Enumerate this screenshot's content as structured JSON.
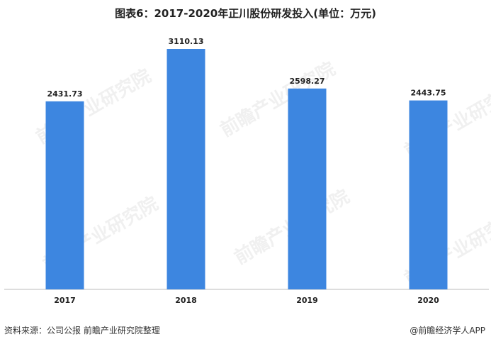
{
  "title": "图表6：2017-2020年正川股份研发投入(单位：万元)",
  "watermark_text": "前瞻产业研究院",
  "footer": {
    "source": "资料来源：公司公报 前瞻产业研究院整理",
    "credit": "@前瞻经济学人APP"
  },
  "colors": {
    "bar": "#3d86e0",
    "axis": "#bbbbbb",
    "text": "#222222"
  },
  "chart_data": {
    "type": "bar",
    "categories": [
      "2017",
      "2018",
      "2019",
      "2020"
    ],
    "values": [
      2431.73,
      3110.13,
      2598.27,
      2443.75
    ],
    "value_labels": [
      "2431.73",
      "3110.13",
      "2598.27",
      "2443.75"
    ],
    "title": "图表6：2017-2020年正川股份研发投入(单位：万元)",
    "xlabel": "",
    "ylabel": "",
    "ylim": [
      0,
      3500
    ],
    "grid": false,
    "legend": "none"
  }
}
